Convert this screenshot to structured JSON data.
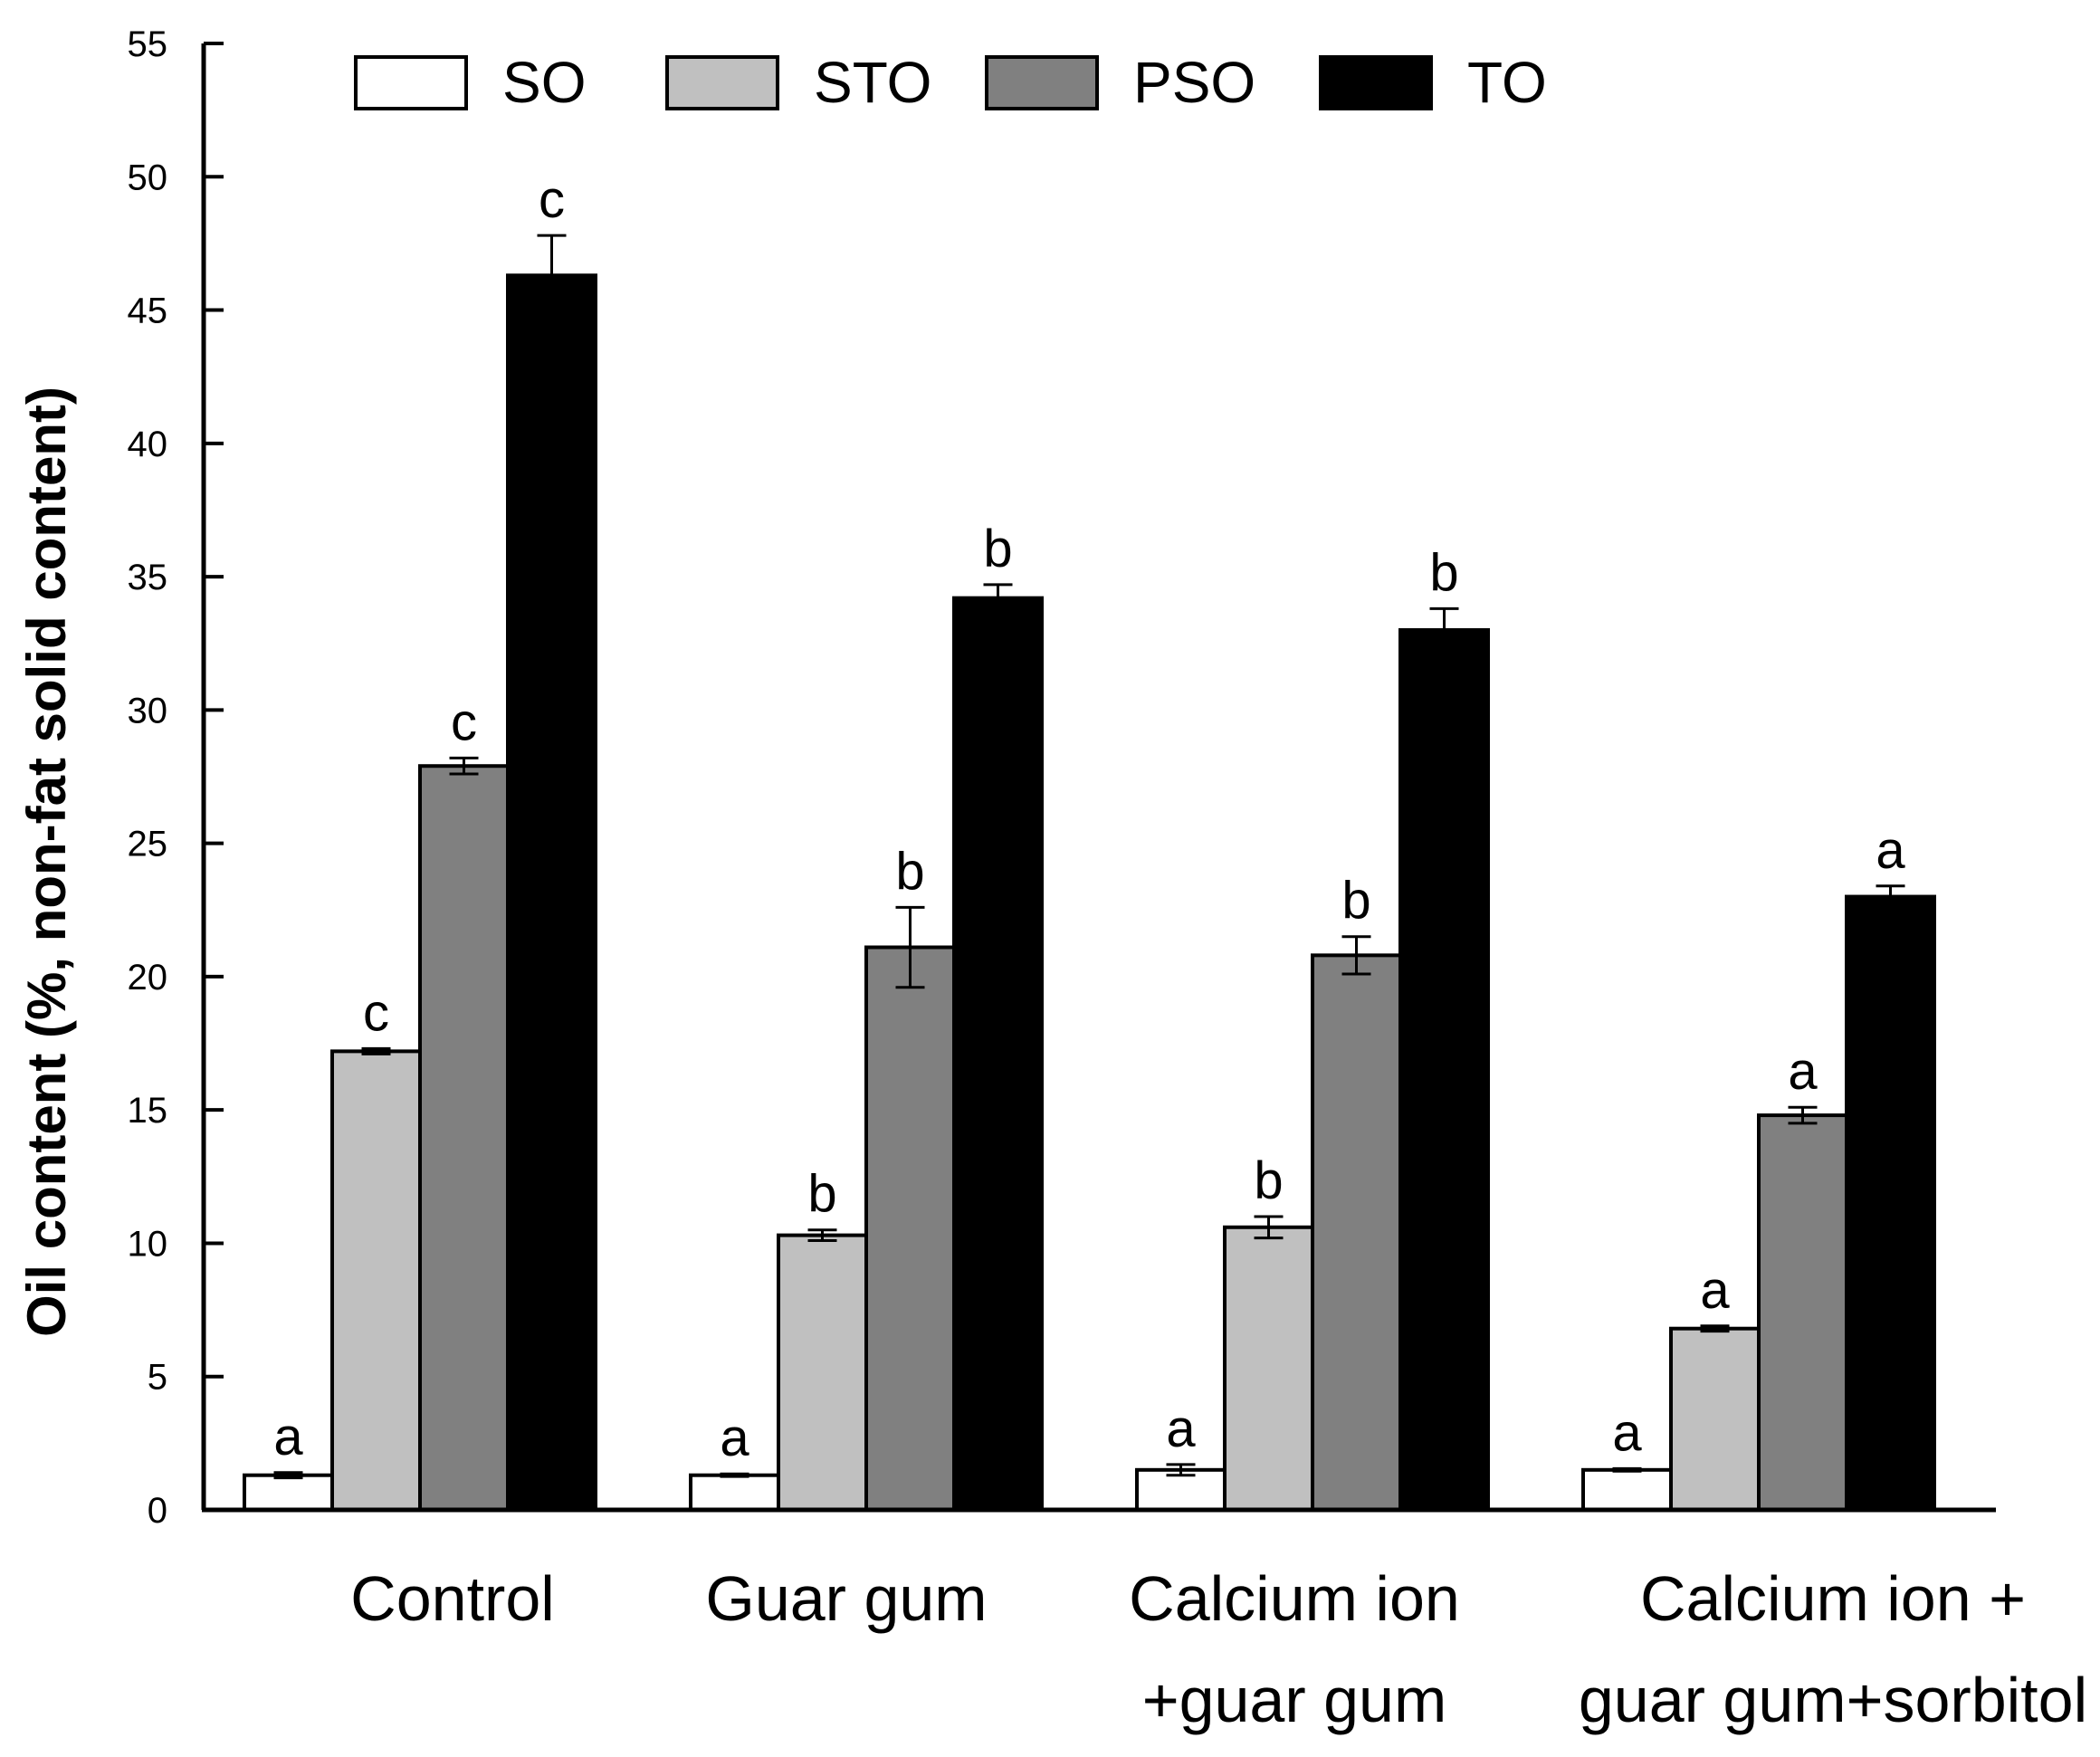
{
  "chart_data": {
    "type": "bar",
    "title": "",
    "xlabel": "",
    "ylabel": "Oil content (%, non-fat solid content)",
    "ylim": [
      0,
      55
    ],
    "yticks": [
      0,
      5,
      10,
      15,
      20,
      25,
      30,
      35,
      40,
      45,
      50,
      55
    ],
    "grid": false,
    "legend_position": "top",
    "categories": [
      [
        "Control"
      ],
      [
        "Guar gum"
      ],
      [
        "Calcium ion",
        "+guar gum"
      ],
      [
        "Calcium ion +",
        "guar gum+sorbitol"
      ]
    ],
    "series": [
      {
        "name": "SO",
        "color": "#ffffff",
        "values": [
          1.3,
          1.3,
          1.5,
          1.5
        ],
        "errors": [
          0.1,
          0.05,
          0.2,
          0.05
        ],
        "letters": [
          "a",
          "a",
          "a",
          "a"
        ]
      },
      {
        "name": "STO",
        "color": "#c0c0c0",
        "values": [
          17.2,
          10.3,
          10.6,
          6.8
        ],
        "errors": [
          0.1,
          0.2,
          0.4,
          0.1
        ],
        "letters": [
          "c",
          "b",
          "b",
          "a"
        ]
      },
      {
        "name": "PSO",
        "color": "#808080",
        "values": [
          27.9,
          21.1,
          20.8,
          14.8
        ],
        "errors": [
          0.3,
          1.5,
          0.7,
          0.3
        ],
        "letters": [
          "c",
          "b",
          "b",
          "a"
        ]
      },
      {
        "name": "TO",
        "color": "#000000",
        "values": [
          46.3,
          34.2,
          33.0,
          23.0
        ],
        "errors": [
          1.5,
          0.5,
          0.8,
          0.4
        ],
        "letters": [
          "c",
          "b",
          "b",
          "a"
        ]
      }
    ]
  }
}
